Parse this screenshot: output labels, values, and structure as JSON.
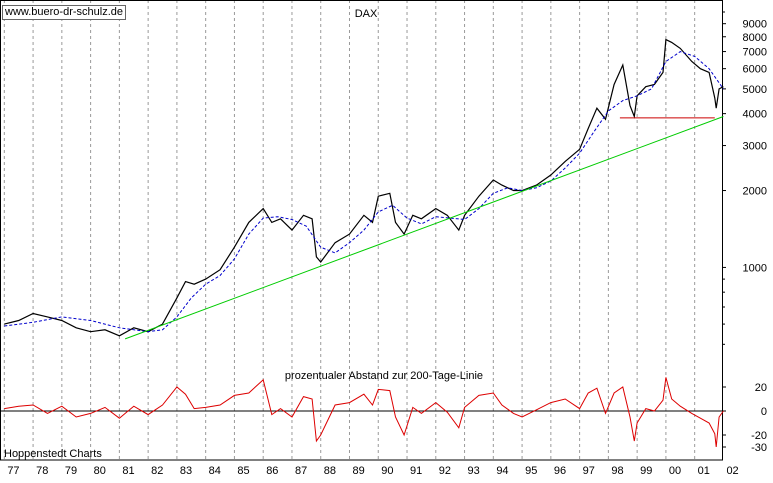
{
  "watermark": "www.buero-dr-schulz.de",
  "credit": "Hoppenstedt Charts",
  "chart_data": [
    {
      "type": "line",
      "title": "DAX",
      "yscale": "log",
      "ylim": [
        450,
        10000
      ],
      "yticks": [
        1000,
        2000,
        3000,
        4000,
        5000,
        6000,
        7000,
        8000,
        9000
      ],
      "ytick_labels": [
        "1000",
        "2000",
        "3000",
        "4000",
        "5000",
        "6000",
        "7000",
        "8000",
        "9000"
      ],
      "x_categories": [
        "77",
        "78",
        "79",
        "80",
        "81",
        "82",
        "83",
        "84",
        "85",
        "86",
        "87",
        "88",
        "89",
        "90",
        "91",
        "92",
        "93",
        "94",
        "95",
        "96",
        "97",
        "98",
        "99",
        "00",
        "01",
        "02"
      ],
      "grid": "vertical dashed",
      "series": [
        {
          "role": "index",
          "color": "#000000",
          "x": [
            1977.0,
            1977.5,
            1978.0,
            1978.5,
            1979.0,
            1979.5,
            1980.0,
            1980.5,
            1981.0,
            1981.5,
            1982.0,
            1982.5,
            1983.0,
            1983.3,
            1983.6,
            1984.0,
            1984.5,
            1985.0,
            1985.5,
            1986.0,
            1986.3,
            1986.6,
            1987.0,
            1987.4,
            1987.7,
            1987.85,
            1988.0,
            1988.5,
            1989.0,
            1989.5,
            1989.8,
            1990.0,
            1990.4,
            1990.6,
            1990.9,
            1991.2,
            1991.5,
            1992.0,
            1992.4,
            1992.8,
            1993.0,
            1993.5,
            1994.0,
            1994.3,
            1994.7,
            1995.0,
            1995.5,
            1996.0,
            1996.5,
            1997.0,
            1997.3,
            1997.6,
            1997.9,
            1998.2,
            1998.5,
            1998.75,
            1998.9,
            1999.0,
            1999.3,
            1999.6,
            1999.9,
            2000.0,
            2000.2,
            2000.5,
            2000.9,
            2001.2,
            2001.5,
            2001.7,
            2001.75,
            2001.85,
            2002.0
          ],
          "y": [
            600,
            620,
            660,
            640,
            620,
            580,
            560,
            570,
            540,
            580,
            560,
            600,
            760,
            880,
            860,
            900,
            980,
            1200,
            1500,
            1700,
            1500,
            1550,
            1400,
            1600,
            1550,
            1100,
            1050,
            1250,
            1350,
            1600,
            1500,
            1900,
            1950,
            1500,
            1350,
            1600,
            1550,
            1700,
            1600,
            1400,
            1600,
            1900,
            2200,
            2100,
            2000,
            2000,
            2100,
            2300,
            2600,
            2900,
            3500,
            4200,
            3800,
            5200,
            6200,
            4300,
            3900,
            4700,
            5100,
            5200,
            5800,
            7800,
            7600,
            7200,
            6400,
            6000,
            5800,
            4600,
            4200,
            5000,
            5100
          ]
        },
        {
          "role": "200-day moving average",
          "color": "#0000cc",
          "style": "dashed",
          "x": [
            1977.0,
            1978.0,
            1979.0,
            1980.0,
            1981.0,
            1982.0,
            1982.5,
            1983.0,
            1983.5,
            1984.0,
            1984.5,
            1985.0,
            1985.5,
            1986.0,
            1986.5,
            1987.0,
            1987.5,
            1988.0,
            1988.5,
            1989.0,
            1989.5,
            1990.0,
            1990.5,
            1991.0,
            1991.5,
            1992.0,
            1992.5,
            1993.0,
            1993.5,
            1994.0,
            1994.5,
            1995.0,
            1995.5,
            1996.0,
            1996.5,
            1997.0,
            1997.5,
            1998.0,
            1998.5,
            1999.0,
            1999.5,
            2000.0,
            2000.5,
            2001.0,
            2001.5,
            2002.0
          ],
          "y": [
            590,
            610,
            640,
            620,
            580,
            560,
            570,
            640,
            760,
            860,
            930,
            1080,
            1350,
            1560,
            1580,
            1540,
            1450,
            1200,
            1140,
            1250,
            1400,
            1650,
            1750,
            1560,
            1480,
            1580,
            1560,
            1540,
            1700,
            1950,
            2050,
            2000,
            2050,
            2180,
            2450,
            2800,
            3400,
            4100,
            4500,
            4700,
            5000,
            6400,
            7000,
            6700,
            6000,
            5000
          ]
        },
        {
          "role": "support trendline",
          "color": "#00cc00",
          "x": [
            1981.2,
            2002.0
          ],
          "y": [
            525,
            3900
          ]
        },
        {
          "role": "horizontal support",
          "color": "#cc0000",
          "x": [
            1998.4,
            2001.7
          ],
          "y": [
            3850,
            3850
          ]
        }
      ]
    },
    {
      "type": "line",
      "title": "prozentualer Abstand zur 200-Tage-Linie",
      "ylim": [
        -35,
        35
      ],
      "yticks": [
        20,
        0,
        -20,
        -30
      ],
      "ytick_labels": [
        "20",
        "0",
        "-20",
        "-30"
      ],
      "x_categories": [
        "77",
        "78",
        "79",
        "80",
        "81",
        "82",
        "83",
        "84",
        "85",
        "86",
        "87",
        "88",
        "89",
        "90",
        "91",
        "92",
        "93",
        "94",
        "95",
        "96",
        "97",
        "98",
        "99",
        "00",
        "01",
        "02"
      ],
      "series": [
        {
          "role": "oscillator",
          "color": "#dd0000",
          "x": [
            1977.0,
            1977.5,
            1978.0,
            1978.5,
            1979.0,
            1979.5,
            1980.0,
            1980.5,
            1981.0,
            1981.5,
            1982.0,
            1982.5,
            1983.0,
            1983.3,
            1983.6,
            1984.0,
            1984.5,
            1985.0,
            1985.5,
            1986.0,
            1986.3,
            1986.6,
            1987.0,
            1987.4,
            1987.7,
            1987.85,
            1988.0,
            1988.5,
            1989.0,
            1989.5,
            1989.8,
            1990.0,
            1990.4,
            1990.6,
            1990.9,
            1991.2,
            1991.5,
            1992.0,
            1992.4,
            1992.8,
            1993.0,
            1993.5,
            1994.0,
            1994.3,
            1994.7,
            1995.0,
            1995.5,
            1996.0,
            1996.5,
            1997.0,
            1997.3,
            1997.6,
            1997.9,
            1998.2,
            1998.5,
            1998.75,
            1998.9,
            1999.0,
            1999.3,
            1999.6,
            1999.9,
            2000.0,
            2000.2,
            2000.5,
            2000.9,
            2001.2,
            2001.5,
            2001.7,
            2001.75,
            2001.85,
            2002.0
          ],
          "y": [
            2,
            4,
            5,
            -2,
            4,
            -5,
            -2,
            3,
            -6,
            4,
            -3,
            5,
            20,
            14,
            2,
            3,
            5,
            13,
            15,
            26,
            -3,
            2,
            -5,
            12,
            10,
            -25,
            -20,
            5,
            7,
            14,
            5,
            18,
            17,
            -5,
            -20,
            3,
            -2,
            7,
            -1,
            -14,
            3,
            13,
            15,
            5,
            -2,
            -5,
            1,
            7,
            10,
            2,
            15,
            19,
            -2,
            15,
            20,
            -5,
            -25,
            -10,
            2,
            0,
            9,
            28,
            10,
            4,
            -2,
            -6,
            -10,
            -19,
            -30,
            -5,
            0
          ]
        }
      ]
    }
  ]
}
